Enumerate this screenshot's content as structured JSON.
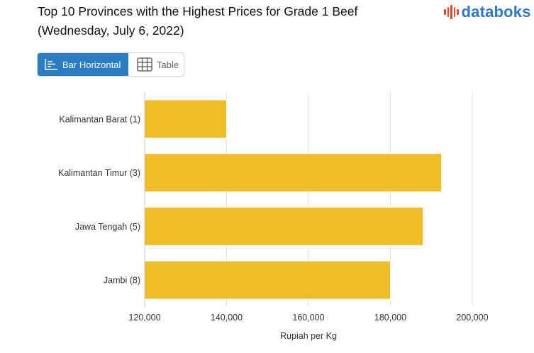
{
  "header": {
    "title_line1": "Top 10 Provinces with the Highest Prices for Grade 1 Beef",
    "title_line2": "(Wednesday, July 6, 2022)",
    "logo_text": "databoks"
  },
  "toggle": {
    "bar_label": "Bar Horizontal",
    "table_label": "Table",
    "active": "bar"
  },
  "colors": {
    "bar": "#f0bd29",
    "active_button": "#2a7dc2",
    "logo_text": "#2f78c4",
    "logo_bars": "#e8492d"
  },
  "chart_data": {
    "type": "bar",
    "orientation": "horizontal",
    "categories": [
      "Kalimantan Barat (1)",
      "Kalimantan Timur (3)",
      "Jawa Tengah (5)",
      "Jambi (8)"
    ],
    "values": [
      140000,
      192500,
      188000,
      180000
    ],
    "xlabel": "Rupiah per Kg",
    "xlim": [
      120000,
      200000
    ],
    "xticks": [
      120000,
      140000,
      160000,
      180000,
      200000
    ],
    "xtick_labels": [
      "120,000",
      "140,000",
      "160,000",
      "180,000",
      "200,000"
    ],
    "grid": true
  }
}
